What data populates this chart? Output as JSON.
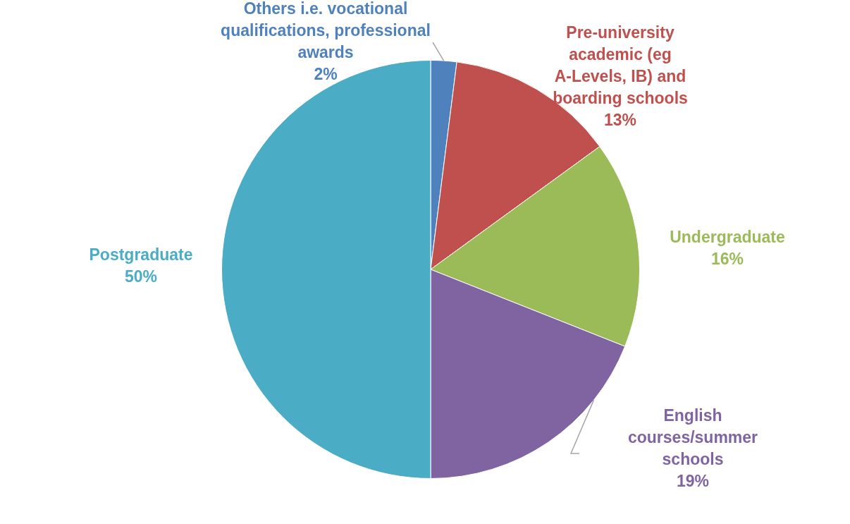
{
  "chart_data": {
    "type": "pie",
    "categories": [
      "Others i.e. vocational qualifications, professional awards",
      "Pre-university academic (eg A-Levels, IB) and boarding schools",
      "Undergraduate",
      "English courses/summer schools",
      "Postgraduate"
    ],
    "values": [
      2,
      13,
      16,
      19,
      50
    ],
    "value_labels": [
      "2%",
      "13%",
      "16%",
      "19%",
      "50%"
    ],
    "colors": [
      "#4f81bd",
      "#c0504d",
      "#9bbb59",
      "#8064a2",
      "#4bacc6"
    ]
  }
}
